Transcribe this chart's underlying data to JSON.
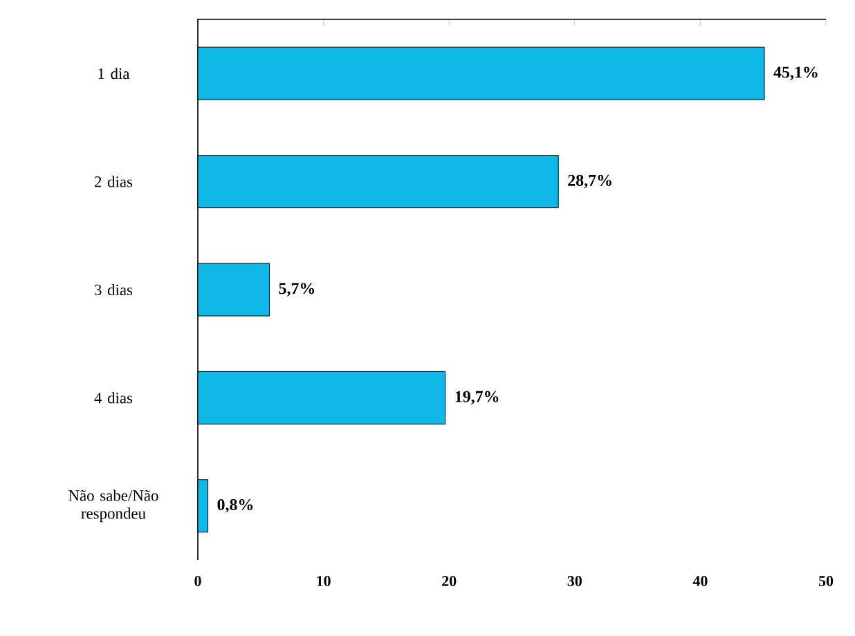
{
  "chart_data": {
    "type": "bar",
    "orientation": "horizontal",
    "categories": [
      "1 dia",
      "2 dias",
      "3 dias",
      "4 dias",
      "Não sabe/Não respondeu"
    ],
    "values": [
      45.1,
      28.7,
      5.7,
      19.7,
      0.8
    ],
    "value_labels": [
      "45,1%",
      "28,7%",
      "5,7%",
      "19,7%",
      "0,8%"
    ],
    "color": "#10b8e8",
    "xlim": [
      0,
      50
    ],
    "xticks": [
      0,
      10,
      20,
      30,
      40,
      50
    ]
  }
}
